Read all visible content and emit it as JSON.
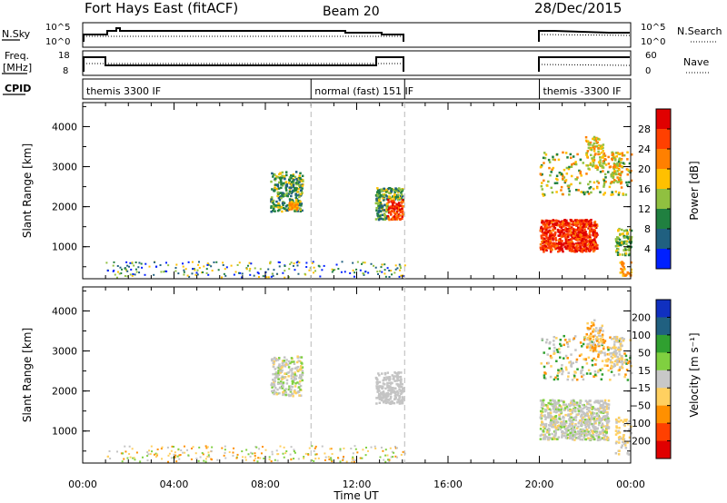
{
  "header": {
    "station": "Fort Hays East (fitACF)",
    "beam": "Beam 20",
    "date": "28/Dec/2015"
  },
  "ancillary": {
    "nsky_label": "N.Sky",
    "nsearch_label": "N.Search",
    "freq_label_1": "Freq.",
    "freq_label_2": "[MHz]",
    "nave_label": "Nave",
    "cpid_label": "CPID",
    "noise_ticks_left": [
      "10^5",
      "10^0"
    ],
    "noise_ticks_right": [
      "10^5",
      "10^0"
    ],
    "freq_ticks": [
      "18",
      "8"
    ],
    "nave_ticks": [
      "60",
      "0"
    ],
    "cpid_segments": [
      {
        "label": "themis 3300 IF",
        "start_hour": 0,
        "end_hour": 10
      },
      {
        "label": "normal (fast) 151 IF",
        "start_hour": 10,
        "end_hour": 14.1
      },
      {
        "label": "themis -3300 IF",
        "start_hour": 20,
        "end_hour": 24
      }
    ]
  },
  "chart_data": [
    {
      "type": "heatmap",
      "panel": "power",
      "ylabel": "Slant Range [km]",
      "xlim_hours": [
        0,
        24
      ],
      "ylim": [
        200,
        4600
      ],
      "y_ticks": [
        1000,
        2000,
        3000,
        4000
      ],
      "x_ticks": [
        "00:00",
        "04:00",
        "08:00",
        "12:00",
        "16:00",
        "20:00",
        "00:00"
      ],
      "colorbar": {
        "label": "Power [dB]",
        "ticks": [
          "28",
          "24",
          "20",
          "16",
          "12",
          "8",
          "4"
        ],
        "colors": [
          "#e00000",
          "#ff4000",
          "#ff8000",
          "#ffc000",
          "#90c040",
          "#208040",
          "#206080",
          "#0020ff"
        ]
      },
      "boundaries_hours": [
        10,
        14.1
      ]
    },
    {
      "type": "heatmap",
      "panel": "velocity",
      "ylabel": "Slant Range [km]",
      "xlabel": "Time UT",
      "xlim_hours": [
        0,
        24
      ],
      "ylim": [
        200,
        4600
      ],
      "y_ticks": [
        1000,
        2000,
        3000,
        4000
      ],
      "x_ticks": [
        "00:00",
        "04:00",
        "08:00",
        "12:00",
        "16:00",
        "20:00",
        "00:00"
      ],
      "colorbar": {
        "label": "Velocity [m s⁻¹]",
        "ticks": [
          "200",
          "100",
          "50",
          "15",
          "−15",
          "−50",
          "−100",
          "−200"
        ],
        "colors": [
          "#1030c0",
          "#206080",
          "#30a030",
          "#80d040",
          "#c8c8c8",
          "#ffd060",
          "#ff9000",
          "#ff4000",
          "#e00000"
        ]
      },
      "boundaries_hours": [
        10,
        14.1
      ]
    }
  ],
  "colors": {
    "grey_scatter": "#c4c4c4",
    "boundary_line": "#b8b8b8"
  }
}
